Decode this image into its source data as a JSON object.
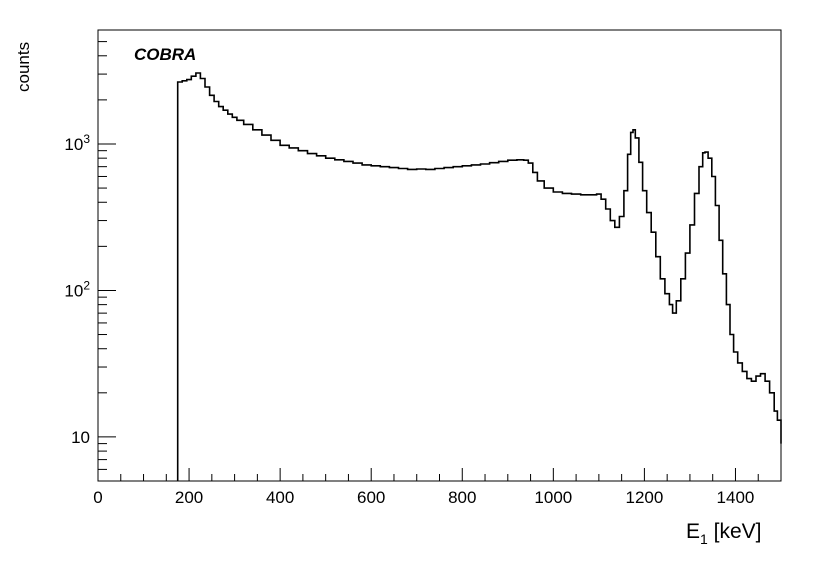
{
  "chart_data": {
    "type": "line",
    "style": "step-histogram",
    "annotation": "COBRA",
    "xlabel_main": "E",
    "xlabel_sub": "1",
    "xlabel_unit": " [keV]",
    "ylabel": "counts",
    "xlim": [
      0,
      1500
    ],
    "ylim": [
      5,
      6000
    ],
    "yscale": "log",
    "grid": false,
    "x_ticks": [
      {
        "value": 0,
        "label": "0"
      },
      {
        "value": 200,
        "label": "200"
      },
      {
        "value": 400,
        "label": "400"
      },
      {
        "value": 600,
        "label": "600"
      },
      {
        "value": 800,
        "label": "800"
      },
      {
        "value": 1000,
        "label": "1000"
      },
      {
        "value": 1200,
        "label": "1200"
      },
      {
        "value": 1400,
        "label": "1400"
      }
    ],
    "y_ticks": [
      {
        "value": 10,
        "label": "10"
      },
      {
        "value": 100,
        "label_base": "10",
        "label_exp": "2"
      },
      {
        "value": 1000,
        "label_base": "10",
        "label_exp": "3"
      }
    ],
    "series": [
      {
        "color": "#000000",
        "points": [
          [
            175,
            2650
          ],
          [
            185,
            2700
          ],
          [
            195,
            2750
          ],
          [
            205,
            2900
          ],
          [
            215,
            3050
          ],
          [
            225,
            2800
          ],
          [
            235,
            2450
          ],
          [
            245,
            2150
          ],
          [
            255,
            1950
          ],
          [
            265,
            1800
          ],
          [
            275,
            1700
          ],
          [
            285,
            1600
          ],
          [
            295,
            1520
          ],
          [
            305,
            1450
          ],
          [
            320,
            1360
          ],
          [
            340,
            1250
          ],
          [
            360,
            1150
          ],
          [
            380,
            1060
          ],
          [
            400,
            980
          ],
          [
            420,
            940
          ],
          [
            440,
            900
          ],
          [
            460,
            860
          ],
          [
            480,
            830
          ],
          [
            500,
            800
          ],
          [
            520,
            780
          ],
          [
            540,
            760
          ],
          [
            560,
            740
          ],
          [
            580,
            720
          ],
          [
            600,
            710
          ],
          [
            620,
            700
          ],
          [
            640,
            690
          ],
          [
            660,
            680
          ],
          [
            680,
            670
          ],
          [
            700,
            675
          ],
          [
            720,
            670
          ],
          [
            740,
            680
          ],
          [
            760,
            690
          ],
          [
            780,
            700
          ],
          [
            800,
            710
          ],
          [
            820,
            720
          ],
          [
            840,
            730
          ],
          [
            860,
            745
          ],
          [
            880,
            760
          ],
          [
            900,
            775
          ],
          [
            920,
            780
          ],
          [
            935,
            775
          ],
          [
            945,
            740
          ],
          [
            955,
            640
          ],
          [
            965,
            560
          ],
          [
            980,
            500
          ],
          [
            1000,
            470
          ],
          [
            1020,
            460
          ],
          [
            1040,
            455
          ],
          [
            1060,
            450
          ],
          [
            1080,
            450
          ],
          [
            1095,
            455
          ],
          [
            1105,
            420
          ],
          [
            1115,
            360
          ],
          [
            1125,
            300
          ],
          [
            1135,
            270
          ],
          [
            1145,
            320
          ],
          [
            1155,
            480
          ],
          [
            1163,
            850
          ],
          [
            1170,
            1200
          ],
          [
            1175,
            1250
          ],
          [
            1180,
            1100
          ],
          [
            1188,
            750
          ],
          [
            1196,
            480
          ],
          [
            1205,
            340
          ],
          [
            1215,
            250
          ],
          [
            1225,
            170
          ],
          [
            1235,
            120
          ],
          [
            1245,
            95
          ],
          [
            1255,
            80
          ],
          [
            1262,
            70
          ],
          [
            1270,
            85
          ],
          [
            1280,
            120
          ],
          [
            1290,
            180
          ],
          [
            1300,
            280
          ],
          [
            1310,
            460
          ],
          [
            1320,
            700
          ],
          [
            1328,
            870
          ],
          [
            1333,
            880
          ],
          [
            1340,
            800
          ],
          [
            1348,
            600
          ],
          [
            1356,
            380
          ],
          [
            1364,
            220
          ],
          [
            1372,
            130
          ],
          [
            1380,
            80
          ],
          [
            1388,
            50
          ],
          [
            1396,
            38
          ],
          [
            1405,
            32
          ],
          [
            1415,
            28
          ],
          [
            1425,
            25
          ],
          [
            1435,
            24
          ],
          [
            1445,
            26
          ],
          [
            1455,
            27
          ],
          [
            1465,
            24
          ],
          [
            1475,
            20
          ],
          [
            1485,
            15
          ],
          [
            1492,
            13
          ],
          [
            1500,
            9
          ]
        ]
      }
    ]
  }
}
